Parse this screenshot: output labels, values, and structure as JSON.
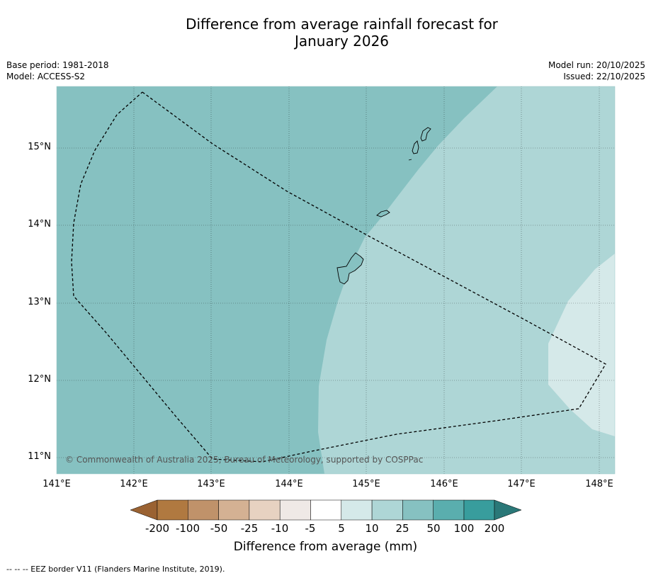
{
  "header": {
    "title_line1": "Difference from average rainfall forecast for",
    "title_line2": "January 2026",
    "base_period": "Base period: 1981-2018",
    "model": "Model: ACCESS-S2",
    "model_run": "Model run: 20/10/2025",
    "issued": "Issued: 22/10/2025"
  },
  "map": {
    "lat_labels": [
      "15°N",
      "14°N",
      "13°N",
      "12°N",
      "11°N"
    ],
    "lon_labels": [
      "141°E",
      "142°E",
      "143°E",
      "144°E",
      "145°E",
      "146°E",
      "147°E",
      "148°E"
    ],
    "copyright": "© Commonwealth of Australia 2025, Bureau of Meteorology, supported by COSPPac",
    "colors": {
      "band_25_50": "#86c1c1",
      "band_10_25": "#aed6d6",
      "band_5_10": "#d5e9e9",
      "land": "#86c1c1"
    }
  },
  "colorbar": {
    "title": "Difference from average (mm)",
    "ticks": [
      "-200",
      "-100",
      "-50",
      "-25",
      "-10",
      "-5",
      "5",
      "10",
      "25",
      "50",
      "100",
      "200"
    ],
    "colors": [
      "#9a6232",
      "#b07940",
      "#c0926a",
      "#d4b193",
      "#e7d2c1",
      "#efe9e6",
      "#ffffff",
      "#d5e9e9",
      "#aed6d6",
      "#86c1c1",
      "#5aaeae",
      "#389d9d",
      "#2a7878"
    ]
  },
  "footnote": "--  --  -- EEZ border V11 (Flanders Marine Institute, 2019)."
}
